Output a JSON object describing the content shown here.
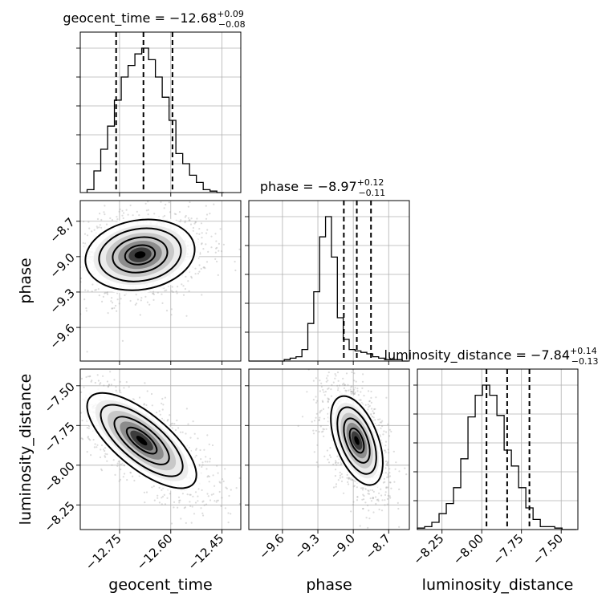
{
  "chart_data": {
    "type": "corner",
    "parameters": [
      "geocent_time",
      "phase",
      "luminosity_distance"
    ],
    "titles": [
      {
        "param": "geocent_time",
        "value": "−12.68",
        "plus": "+0.09",
        "minus": "−0.08"
      },
      {
        "param": "phase",
        "value": "−8.97",
        "plus": "+0.12",
        "minus": "−0.11"
      },
      {
        "param": "luminosity_distance",
        "value": "−7.84",
        "plus": "+0.14",
        "minus": "−0.13"
      }
    ],
    "ranges": {
      "geocent_time": [
        -12.865,
        -12.395
      ],
      "phase": [
        -9.885,
        -8.525
      ],
      "luminosity_distance": [
        -8.405,
        -7.395
      ]
    },
    "ticks": {
      "geocent_time": {
        "values": [
          -12.75,
          -12.6,
          -12.45
        ],
        "labels": [
          "−12.75",
          "−12.60",
          "−12.45"
        ]
      },
      "phase": {
        "values": [
          -9.6,
          -9.3,
          -9.0,
          -8.7
        ],
        "labels": [
          "−9.6",
          "−9.3",
          "−9.0",
          "−8.7"
        ]
      },
      "luminosity_distance": {
        "values": [
          -8.25,
          -8.0,
          -7.75,
          -7.5
        ],
        "labels": [
          "−8.25",
          "−8.00",
          "−7.75",
          "−7.50"
        ]
      }
    },
    "quantiles": {
      "geocent_time": [
        -12.76,
        -12.68,
        -12.595
      ],
      "phase": [
        -9.08,
        -8.97,
        -8.85
      ],
      "luminosity_distance": [
        -7.97,
        -7.84,
        -7.7
      ]
    },
    "histograms": {
      "geocent_time": {
        "edges_start": -12.845,
        "bin_width": 0.02,
        "max": 1.0,
        "counts": [
          0.02,
          0.15,
          0.3,
          0.46,
          0.64,
          0.8,
          0.88,
          0.96,
          1.0,
          0.92,
          0.8,
          0.66,
          0.5,
          0.27,
          0.2,
          0.12,
          0.07,
          0.02,
          0.01,
          0.0
        ]
      },
      "phase": {
        "edges_start": -9.885,
        "bin_width": 0.05,
        "max": 1.0,
        "counts": [
          0,
          0,
          0,
          0,
          0,
          0,
          0.01,
          0.02,
          0.03,
          0.08,
          0.26,
          0.48,
          0.86,
          1.0,
          0.72,
          0.3,
          0.15,
          0.08,
          0.07,
          0.06,
          0.05,
          0.03,
          0.02,
          0.01,
          0.01,
          0.01,
          0.0
        ]
      },
      "luminosity_distance": {
        "edges_start": -8.405,
        "bin_width": 0.0455,
        "max": 1.0,
        "counts": [
          0.01,
          0.02,
          0.05,
          0.11,
          0.18,
          0.29,
          0.49,
          0.78,
          0.93,
          1.0,
          0.93,
          0.79,
          0.55,
          0.44,
          0.29,
          0.15,
          0.07,
          0.02,
          0.02,
          0.01,
          0.0,
          0.0
        ]
      }
    },
    "joint": [
      {
        "x": "geocent_time",
        "y": "phase",
        "cx": -12.69,
        "cy": -8.985,
        "sx": 0.08,
        "sy": 0.15,
        "rho": 0.15
      },
      {
        "x": "geocent_time",
        "y": "luminosity_distance",
        "cx": -12.685,
        "cy": -7.845,
        "sx": 0.08,
        "sy": 0.15,
        "rho": -0.72
      },
      {
        "x": "phase",
        "y": "luminosity_distance",
        "cx": -8.97,
        "cy": -7.845,
        "sx": 0.11,
        "sy": 0.14,
        "rho": -0.5
      }
    ],
    "axis_labels": {
      "x": [
        "geocent_time",
        "phase",
        "luminosity_distance"
      ],
      "y": [
        "phase",
        "luminosity_distance"
      ]
    },
    "grid": true
  }
}
